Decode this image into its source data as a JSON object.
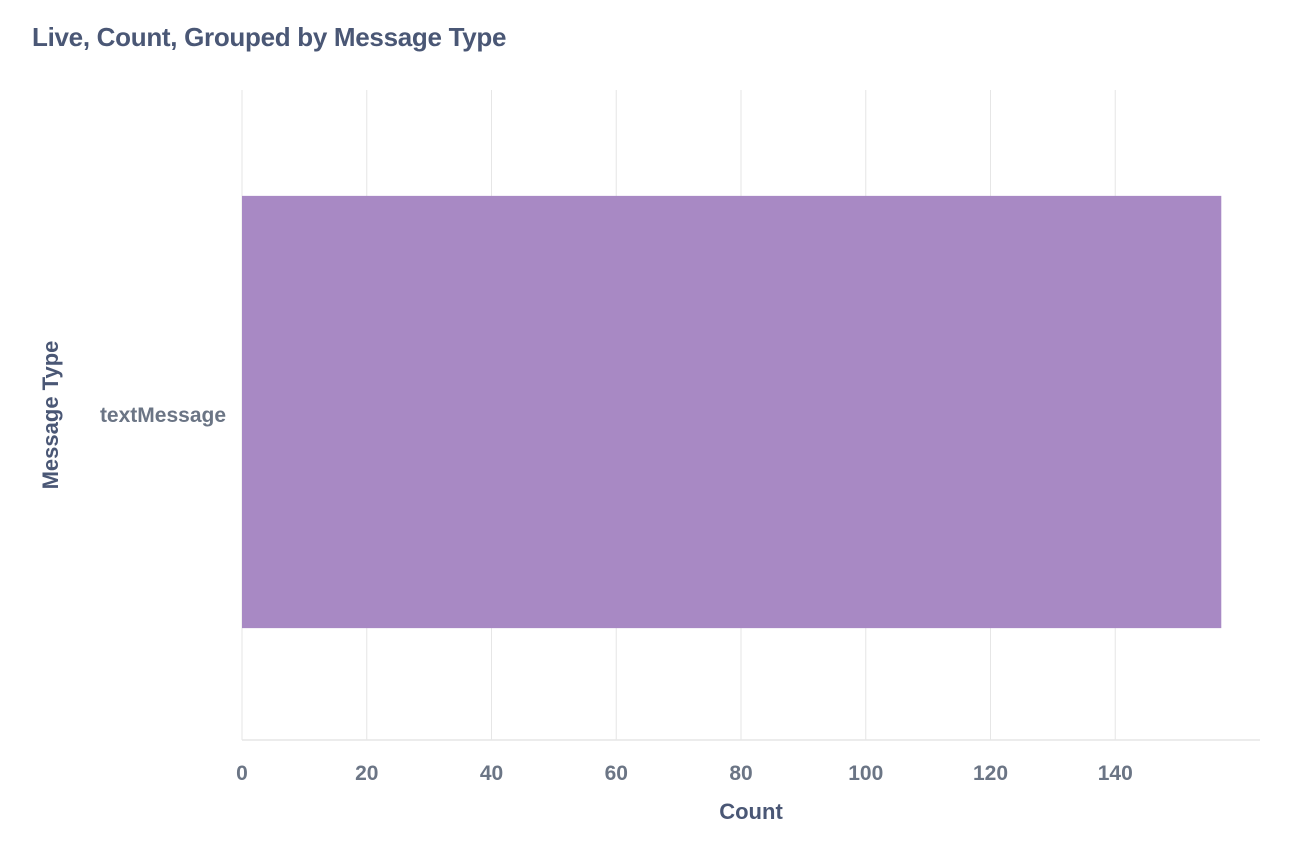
{
  "chart_data": {
    "type": "bar",
    "orientation": "horizontal",
    "title": "Live, Count, Grouped by Message Type",
    "xlabel": "Count",
    "ylabel": "Message Type",
    "categories": [
      "textMessage"
    ],
    "values": [
      157
    ],
    "xlim": [
      0,
      160
    ],
    "xticks": [
      0,
      20,
      40,
      60,
      80,
      100,
      120,
      140
    ],
    "grid": true,
    "legend": "none",
    "bar_color": "#a889c4"
  }
}
